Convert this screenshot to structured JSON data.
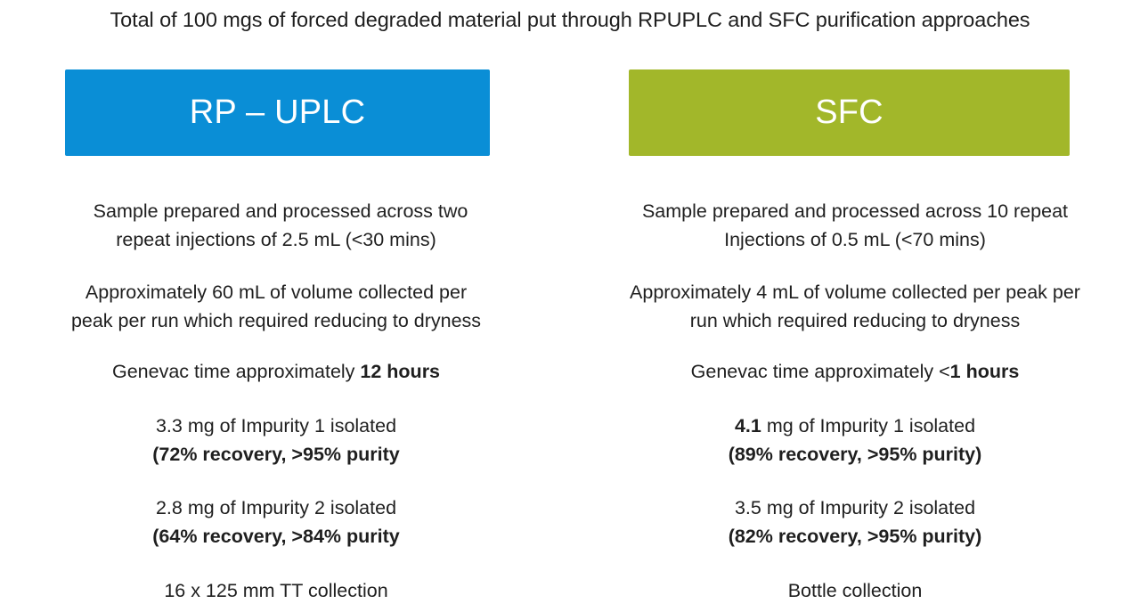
{
  "title": "Total of 100 mgs of forced degraded material put through RPUPLC and SFC purification approaches",
  "colors": {
    "rp_uplc_box": "#0A8ED6",
    "sfc_box": "#A2B72A",
    "box_text": "#FFFFFF",
    "body_text": "#1F1F1F"
  },
  "columns": [
    {
      "method": "RP – UPLC",
      "injections": {
        "line1": "Sample prepared and processed across two",
        "line2": "repeat injections of  2.5 mL (<30 mins)"
      },
      "volume": {
        "line1": "Approximately 60 mL of volume collected per",
        "line2": "peak per run which required reducing to dryness"
      },
      "genevac": {
        "prefix": "Genevac time approximately ",
        "value": "12 hours"
      },
      "impurity1": {
        "amount": "3.3",
        "text": " mg of Impurity 1 isolated",
        "detail": "(72% recovery, >95% purity"
      },
      "impurity2": {
        "amount": "2.8",
        "text": " mg of Impurity 2 isolated",
        "detail": "(64% recovery, >84% purity"
      },
      "collection": "16 x 125 mm TT collection"
    },
    {
      "method": "SFC",
      "injections": {
        "line1": "Sample prepared and processed across 10 repeat",
        "line2": "Injections of 0.5 mL (<70 mins)"
      },
      "volume": {
        "line1": "Approximately 4 mL of volume collected per peak per",
        "line2": "run which required reducing to dryness"
      },
      "genevac": {
        "prefix": "Genevac time approximately <",
        "value": "1 hours"
      },
      "impurity1": {
        "amount": "4.1",
        "text": " mg of Impurity 1 isolated",
        "detail": "(89% recovery, >95% purity)"
      },
      "impurity2": {
        "amount": "3.5",
        "text": " mg of Impurity 2 isolated",
        "detail": "(82% recovery, >95% purity)"
      },
      "collection": "Bottle collection"
    }
  ]
}
